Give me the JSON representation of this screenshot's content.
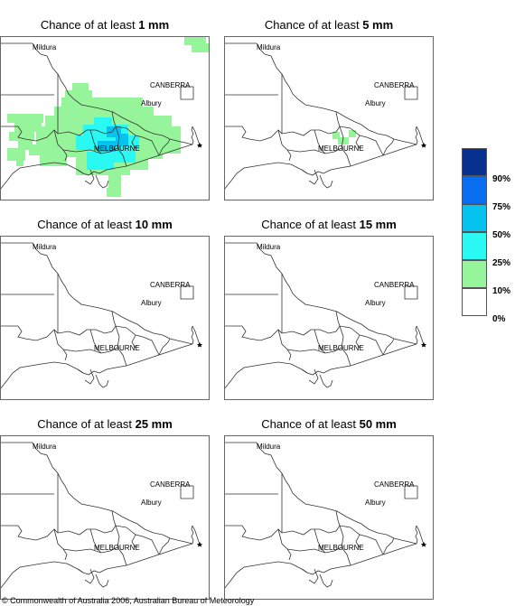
{
  "panels": [
    {
      "prefix": "Chance of at least ",
      "amount": "1 mm"
    },
    {
      "prefix": "Chance of at least ",
      "amount": "5 mm"
    },
    {
      "prefix": "Chance of at least ",
      "amount": "10 mm"
    },
    {
      "prefix": "Chance of at least ",
      "amount": "15 mm"
    },
    {
      "prefix": "Chance of at least ",
      "amount": "25 mm"
    },
    {
      "prefix": "Chance of at least ",
      "amount": "50 mm"
    }
  ],
  "cities": {
    "mildura": "Mildura",
    "canberra": "CANBERRA",
    "albury": "Albury",
    "melbourne": "MELBOURNE"
  },
  "legend": {
    "labels": [
      "90%",
      "75%",
      "50%",
      "25%",
      "10%",
      "0%"
    ],
    "colors": [
      "#08308f",
      "#0a6ef0",
      "#06c2ee",
      "#2af8f2",
      "#96f59a",
      "#ffffff"
    ]
  },
  "colors": {
    "c10": "#96f59a",
    "c25": "#2af8f2",
    "c50": "#06c2ee",
    "c75": "#0a6ef0"
  },
  "copyright": "© Commonwealth of Australia 2006, Australian Bureau of Meteorology"
}
